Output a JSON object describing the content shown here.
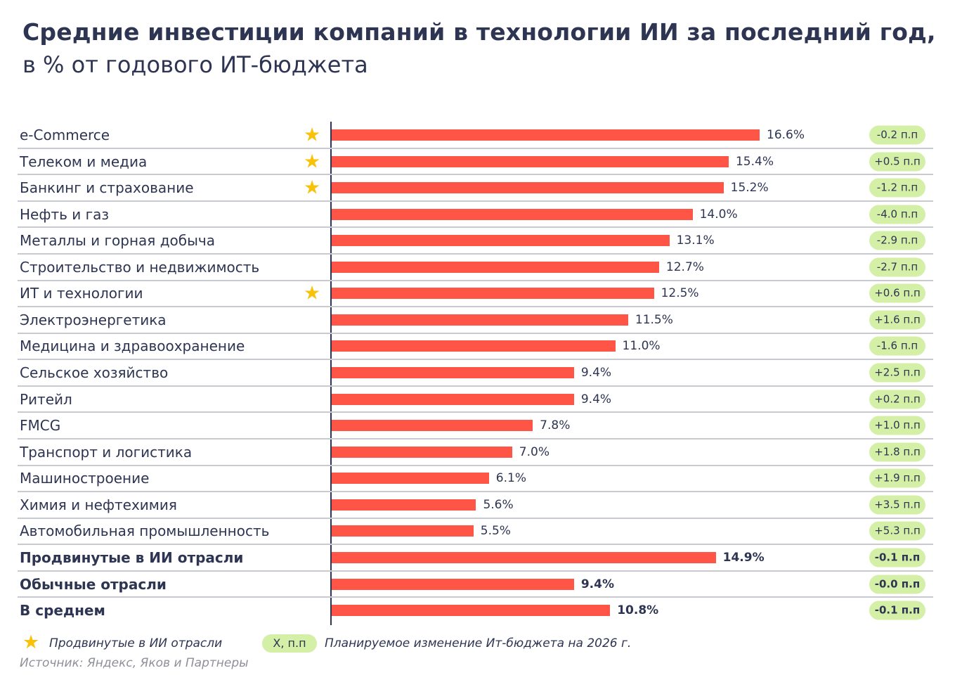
{
  "title": "Средние инвестиции компаний в технологии ИИ за последний год,",
  "subtitle": "в % от годового ИТ-бюджета",
  "colors": {
    "bar": "#ff5546",
    "badge": "#d4efa6",
    "star": "#f8c20a",
    "text": "#2e3553"
  },
  "chart_data": {
    "type": "bar",
    "orientation": "horizontal",
    "unit": "%",
    "categories": [
      "e-Commerce",
      "Телеком и медиа",
      "Банкинг и страхование",
      "Нефть и газ",
      "Металлы и горная добыча",
      "Строительство и недвижимость",
      "ИТ и технологии",
      "Электроэнергетика",
      "Медицина и здравоохранение",
      "Сельское хозяйство",
      "Ритейл",
      "FMCG",
      "Транспорт и логистика",
      "Машиностроение",
      "Химия и нефтехимия",
      "Автомобильная промышленность",
      "Продвинутые в ИИ отрасли",
      "Обычные отрасли",
      "В среднем"
    ],
    "values": [
      16.6,
      15.4,
      15.2,
      14.0,
      13.1,
      12.7,
      12.5,
      11.5,
      11.0,
      9.4,
      9.4,
      7.8,
      7.0,
      6.1,
      5.6,
      5.5,
      14.9,
      9.4,
      10.8
    ],
    "value_labels": [
      "16.6%",
      "15.4%",
      "15.2%",
      "14.0%",
      "13.1%",
      "12.7%",
      "12.5%",
      "11.5%",
      "11.0%",
      "9.4%",
      "9.4%",
      "7.8%",
      "7.0%",
      "6.1%",
      "5.6%",
      "5.5%",
      "14.9%",
      "9.4%",
      "10.8%"
    ],
    "ai_advanced": [
      true,
      true,
      true,
      false,
      false,
      false,
      true,
      false,
      false,
      false,
      false,
      false,
      false,
      false,
      false,
      false,
      false,
      false,
      false
    ],
    "summary_rows": [
      false,
      false,
      false,
      false,
      false,
      false,
      false,
      false,
      false,
      false,
      false,
      false,
      false,
      false,
      false,
      false,
      true,
      true,
      true
    ],
    "change_labels": [
      "-0.2 п.п",
      "+0.5 п.п",
      "-1.2 п.п",
      "-4.0 п.п",
      "-2.9 п.п",
      "-2.7 п.п",
      "+0.6 п.п",
      "+1.6 п.п",
      "-1.6 п.п",
      "+2.5 п.п",
      "+0.2 п.п",
      "+1.0 п.п",
      "+1.8 п.п",
      "+1.9 п.п",
      "+3.5 п.п",
      "+5.3 п.п",
      "-0.1 п.п",
      "-0.0 п.п",
      "-0.1 п.п"
    ],
    "changes": [
      -0.2,
      0.5,
      -1.2,
      -4.0,
      -2.9,
      -2.7,
      0.6,
      1.6,
      -1.6,
      2.5,
      0.2,
      1.0,
      1.8,
      1.9,
      3.5,
      5.3,
      -0.1,
      -0.0,
      -0.1
    ],
    "xlim": [
      0,
      16.6
    ],
    "grid": false
  },
  "legend": {
    "star_label": "Продвинутые в ИИ отрасли",
    "badge_sample": "X, п.п",
    "badge_label": "Планируемое изменение Ит-бюджета на 2026 г."
  },
  "source": "Источник: Яндекс, Яков и Партнеры"
}
